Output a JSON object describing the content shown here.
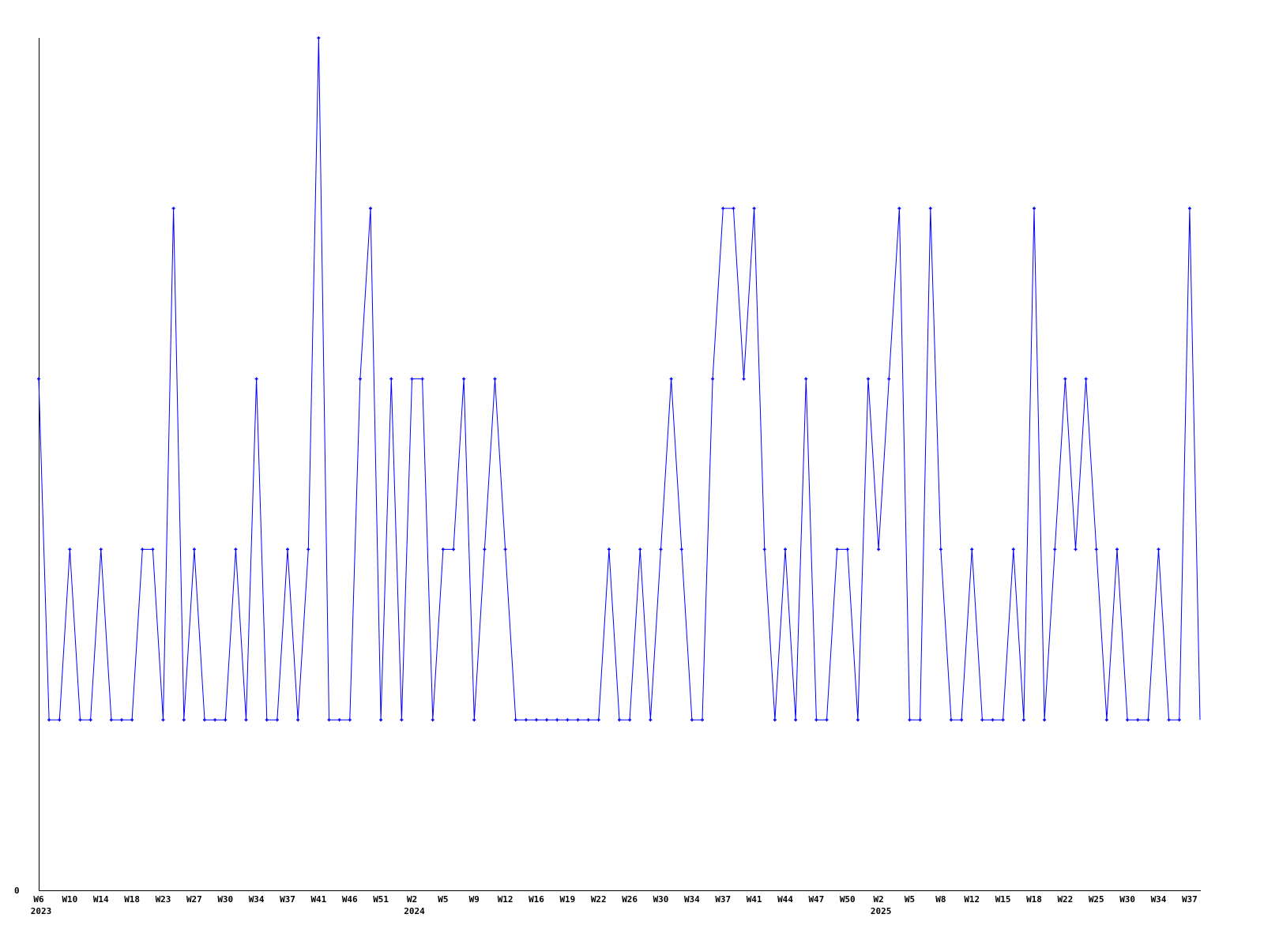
{
  "chart_data": {
    "type": "line",
    "title": "",
    "xlabel": "",
    "ylabel": "",
    "ylim": [
      0,
      5
    ],
    "grid": false,
    "legend": "none",
    "series_color": "#0000ff",
    "axis_color": "#000000",
    "y_tick_labels": [
      "0"
    ],
    "x_tick_labels": [
      "W6",
      "W10",
      "W14",
      "W18",
      "W23",
      "W27",
      "W30",
      "W34",
      "W37",
      "W41",
      "W46",
      "W51",
      "W2",
      "W5",
      "W9",
      "W12",
      "W16",
      "W19",
      "W22",
      "W26",
      "W30",
      "W34",
      "W37",
      "W41",
      "W44",
      "W47",
      "W50",
      "W2",
      "W5",
      "W8",
      "W12",
      "W15",
      "W18",
      "W22",
      "W25",
      "W30",
      "W34",
      "W37"
    ],
    "x_tick_every": 3,
    "year_labels": [
      {
        "label": "2023",
        "index": 0
      },
      {
        "label": "2024",
        "index": 36
      },
      {
        "label": "2025",
        "index": 81
      }
    ],
    "values": [
      3,
      1,
      1,
      2,
      1,
      1,
      2,
      1,
      1,
      1,
      2,
      2,
      1,
      4,
      1,
      2,
      1,
      1,
      1,
      2,
      1,
      3,
      1,
      1,
      2,
      1,
      2,
      5,
      1,
      1,
      1,
      3,
      4,
      1,
      3,
      1,
      3,
      3,
      1,
      2,
      2,
      3,
      1,
      2,
      3,
      2,
      1,
      1,
      1,
      1,
      1,
      1,
      1,
      1,
      1,
      2,
      1,
      1,
      2,
      1,
      2,
      3,
      2,
      1,
      1,
      3,
      4,
      4,
      3,
      4,
      2,
      1,
      2,
      1,
      3,
      1,
      1,
      2,
      2,
      1,
      3,
      2,
      3,
      4,
      1,
      1,
      4,
      2,
      1,
      1,
      2,
      1,
      1,
      1,
      2,
      1,
      4,
      1,
      2,
      3,
      2,
      3,
      2,
      1,
      2,
      1,
      1,
      1,
      2,
      1,
      1,
      4,
      1
    ]
  }
}
